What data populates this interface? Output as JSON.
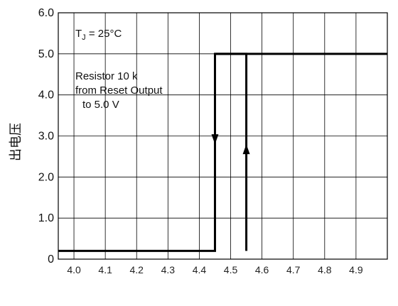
{
  "chart_data": {
    "type": "line",
    "title": "",
    "xlabel": "",
    "ylabel": "出电压",
    "y_ticks": [
      0,
      1.0,
      2.0,
      3.0,
      4.0,
      5.0,
      6.0
    ],
    "y_tick_labels": [
      "0",
      "1.0",
      "2.0",
      "3.0",
      "4.0",
      "5.0",
      "6.0"
    ],
    "x_ticks": [
      4.0,
      4.1,
      4.2,
      4.3,
      4.4,
      4.5,
      4.6,
      4.7,
      4.8,
      4.9
    ],
    "x_tick_labels": [
      "4.0",
      "4.1",
      "4.2",
      "4.3",
      "4.4",
      "4.5",
      "4.6",
      "4.7",
      "4.8",
      "4.9"
    ],
    "xlim": [
      3.95,
      5.0
    ],
    "ylim": [
      0,
      6.0
    ],
    "grid": true,
    "annotations": {
      "temp": "T",
      "temp_sub": "J",
      "temp_rest": " = 25°C",
      "resistor_line1": "Resistor 10 k",
      "resistor_line2": "from Reset Output",
      "resistor_line3": "to 5.0 V"
    },
    "series": [
      {
        "x": [
          3.95,
          4.45,
          4.45,
          5.0
        ],
        "y": [
          0.2,
          0.2,
          5.0,
          5.0
        ],
        "color": "#000000"
      },
      {
        "x": [
          4.45,
          4.55,
          4.55
        ],
        "y": [
          5.0,
          5.0,
          0.2
        ],
        "color": "#000000"
      }
    ],
    "arrows": [
      {
        "x": 4.45,
        "direction": "down"
      },
      {
        "x": 4.55,
        "direction": "up"
      }
    ]
  }
}
